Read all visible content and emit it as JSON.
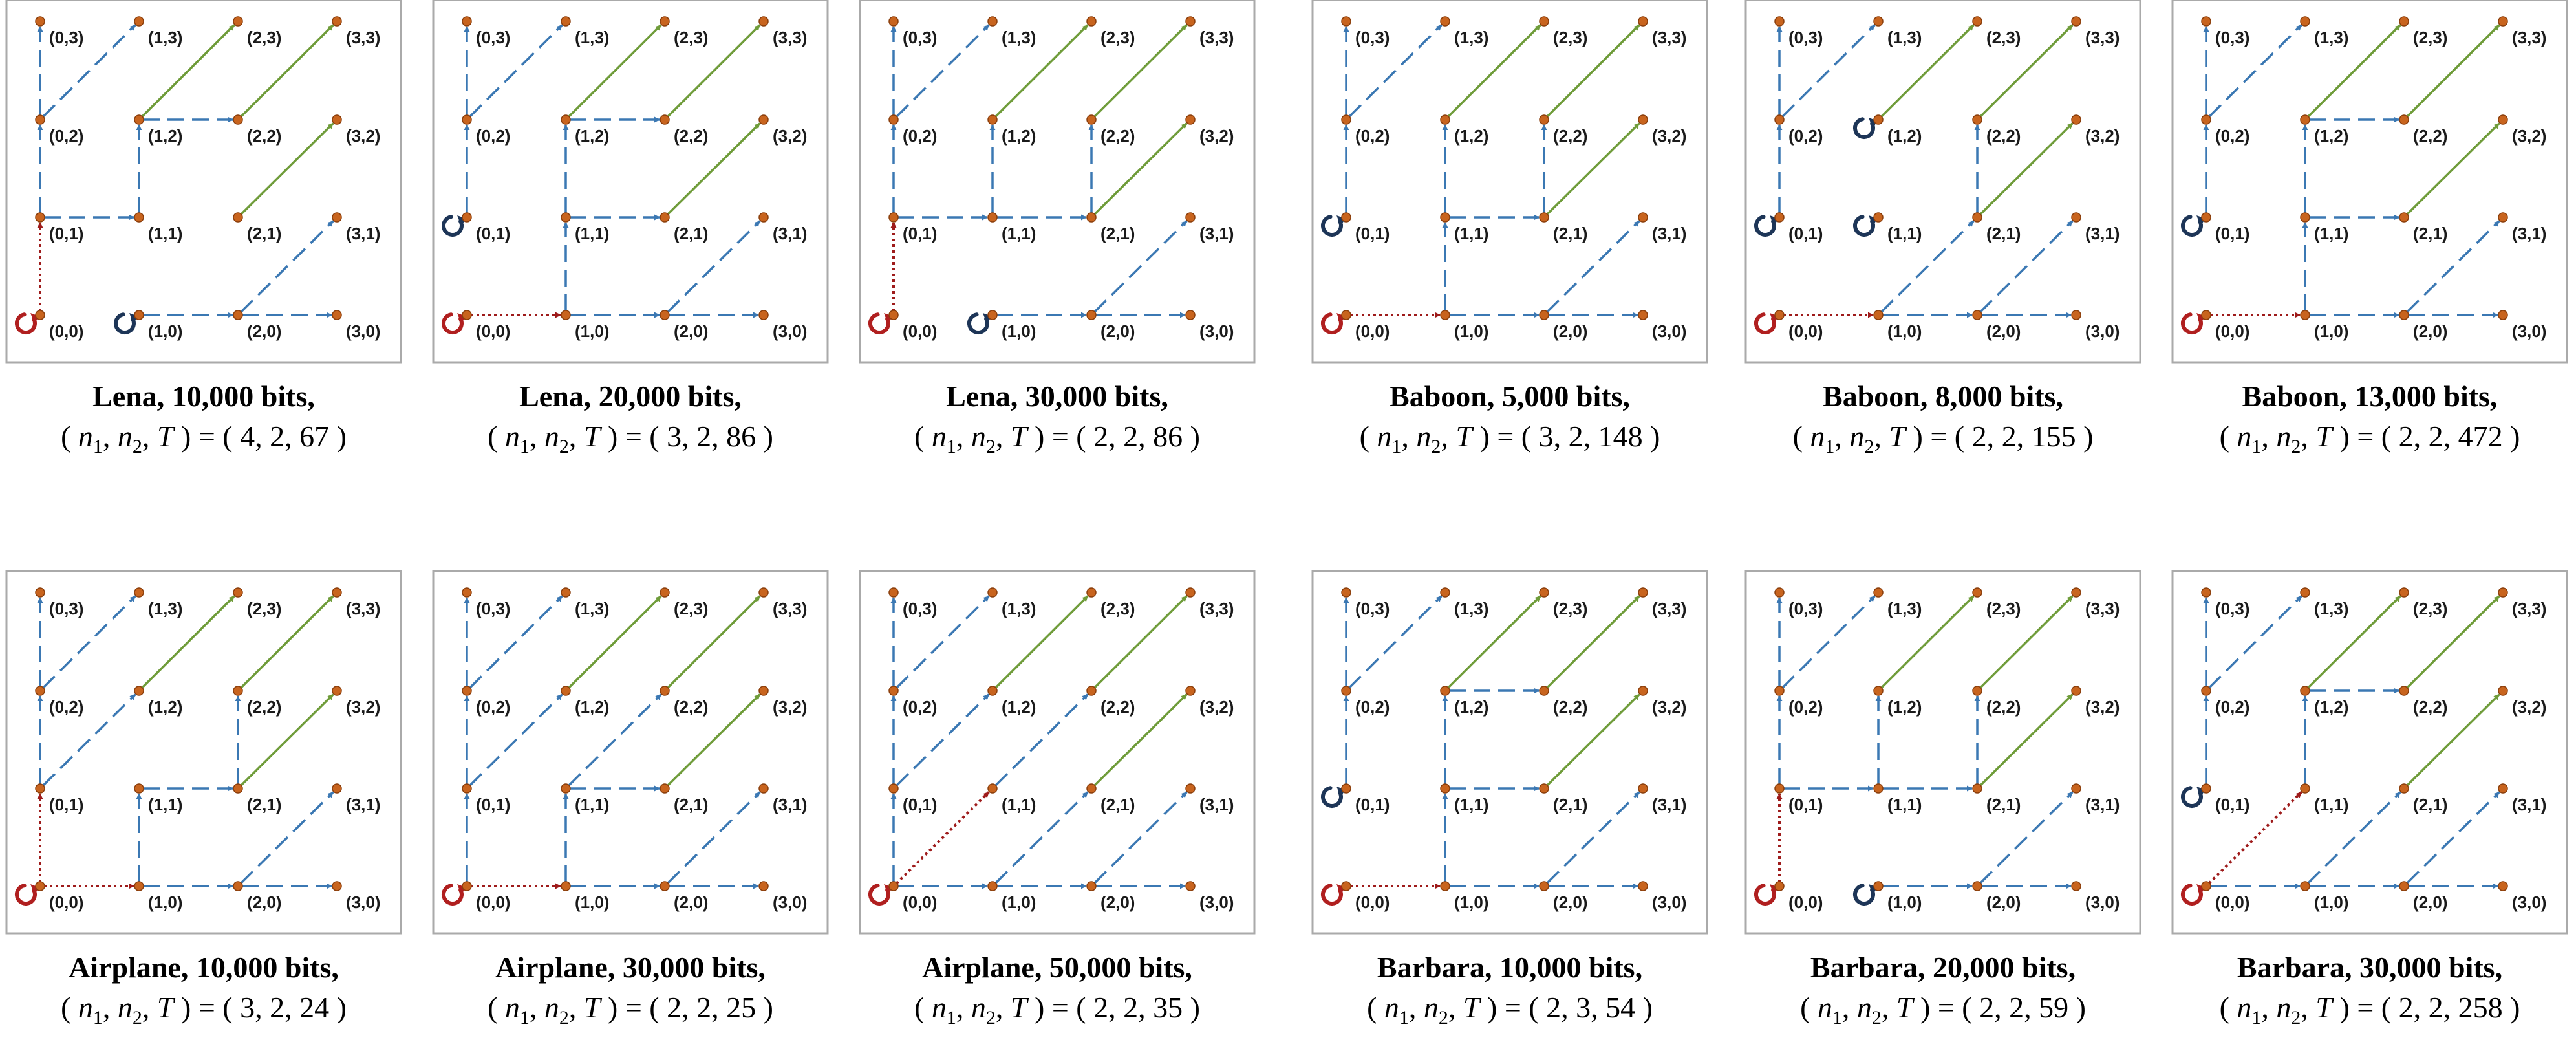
{
  "colors": {
    "node": "#c8641e",
    "dashed_edge": "#3b78b3",
    "solid_edge": "#6f9c3a",
    "dotted_edge": "#9e1b1b",
    "self_loop_red": "#b01f1f",
    "self_loop_blue": "#1d3557",
    "panel_border": "#aaaaaa"
  },
  "panels": [
    {
      "name": "Lena",
      "bits": "10,000 bits,",
      "params": "( 4, 2, 67 )",
      "loops": [
        {
          "node": "0,0",
          "color": "red"
        },
        {
          "node": "1,0",
          "color": "blue"
        }
      ],
      "edges": [
        [
          "0,0",
          "0,1",
          "dot"
        ],
        [
          "0,1",
          "0,2",
          "dash"
        ],
        [
          "0,2",
          "0,3",
          "dash"
        ],
        [
          "0,1",
          "1,1",
          "dash"
        ],
        [
          "0,2",
          "1,3",
          "dash"
        ],
        [
          "1,1",
          "1,2",
          "dash"
        ],
        [
          "1,2",
          "2,2",
          "dash"
        ],
        [
          "1,2",
          "2,3",
          "solid"
        ],
        [
          "2,2",
          "3,3",
          "solid"
        ],
        [
          "2,1",
          "3,2",
          "solid"
        ],
        [
          "1,0",
          "2,0",
          "dash"
        ],
        [
          "2,0",
          "3,0",
          "dash"
        ],
        [
          "2,0",
          "3,1",
          "dash"
        ]
      ]
    },
    {
      "name": "Lena",
      "bits": "20,000 bits,",
      "params": "( 3, 2, 86 )",
      "loops": [
        {
          "node": "0,0",
          "color": "red"
        },
        {
          "node": "0,1",
          "color": "blue"
        }
      ],
      "edges": [
        [
          "0,0",
          "1,0",
          "dot"
        ],
        [
          "1,0",
          "2,0",
          "dash"
        ],
        [
          "2,0",
          "3,0",
          "dash"
        ],
        [
          "2,0",
          "3,1",
          "dash"
        ],
        [
          "1,0",
          "1,1",
          "dash"
        ],
        [
          "1,1",
          "2,1",
          "dash"
        ],
        [
          "1,1",
          "1,2",
          "dash"
        ],
        [
          "1,2",
          "2,2",
          "dash"
        ],
        [
          "1,2",
          "2,3",
          "solid"
        ],
        [
          "2,2",
          "3,3",
          "solid"
        ],
        [
          "2,1",
          "3,2",
          "solid"
        ],
        [
          "0,1",
          "0,2",
          "dash"
        ],
        [
          "0,2",
          "0,3",
          "dash"
        ],
        [
          "0,2",
          "1,3",
          "dash"
        ]
      ]
    },
    {
      "name": "Lena",
      "bits": "30,000 bits,",
      "params": "( 2, 2, 86 )",
      "loops": [
        {
          "node": "0,0",
          "color": "red"
        },
        {
          "node": "1,0",
          "color": "blue"
        }
      ],
      "edges": [
        [
          "0,0",
          "0,1",
          "dot"
        ],
        [
          "0,1",
          "1,1",
          "dash"
        ],
        [
          "1,1",
          "2,1",
          "dash"
        ],
        [
          "0,1",
          "0,2",
          "dash"
        ],
        [
          "0,2",
          "0,3",
          "dash"
        ],
        [
          "0,2",
          "1,3",
          "dash"
        ],
        [
          "1,1",
          "1,2",
          "dash"
        ],
        [
          "1,2",
          "2,3",
          "solid"
        ],
        [
          "2,1",
          "2,2",
          "dash"
        ],
        [
          "2,2",
          "3,3",
          "solid"
        ],
        [
          "2,1",
          "3,2",
          "solid"
        ],
        [
          "1,0",
          "2,0",
          "dash"
        ],
        [
          "2,0",
          "3,0",
          "dash"
        ],
        [
          "2,0",
          "3,1",
          "dash"
        ]
      ]
    },
    {
      "name": "Baboon",
      "bits": "5,000 bits,",
      "params": "( 3, 2, 148 )",
      "loops": [
        {
          "node": "0,0",
          "color": "red"
        },
        {
          "node": "0,1",
          "color": "blue"
        }
      ],
      "edges": [
        [
          "0,0",
          "1,0",
          "dot"
        ],
        [
          "1,0",
          "2,0",
          "dash"
        ],
        [
          "2,0",
          "3,0",
          "dash"
        ],
        [
          "2,0",
          "3,1",
          "dash"
        ],
        [
          "1,0",
          "1,1",
          "dash"
        ],
        [
          "1,1",
          "2,1",
          "dash"
        ],
        [
          "1,1",
          "1,2",
          "dash"
        ],
        [
          "1,2",
          "2,3",
          "solid"
        ],
        [
          "2,1",
          "2,2",
          "dash"
        ],
        [
          "2,2",
          "3,3",
          "solid"
        ],
        [
          "2,1",
          "3,2",
          "solid"
        ],
        [
          "0,1",
          "0,2",
          "dash"
        ],
        [
          "0,2",
          "0,3",
          "dash"
        ],
        [
          "0,2",
          "1,3",
          "dash"
        ]
      ]
    },
    {
      "name": "Baboon",
      "bits": "8,000 bits,",
      "params": "( 2, 2, 155 )",
      "loops": [
        {
          "node": "0,0",
          "color": "red"
        },
        {
          "node": "0,1",
          "color": "blue"
        },
        {
          "node": "1,1",
          "color": "blue"
        },
        {
          "node": "1,2",
          "color": "blue"
        }
      ],
      "edges": [
        [
          "0,0",
          "1,0",
          "dot"
        ],
        [
          "1,0",
          "2,0",
          "dash"
        ],
        [
          "2,0",
          "3,0",
          "dash"
        ],
        [
          "2,0",
          "3,1",
          "dash"
        ],
        [
          "1,0",
          "2,1",
          "dash"
        ],
        [
          "2,1",
          "2,2",
          "dash"
        ],
        [
          "2,2",
          "3,3",
          "solid"
        ],
        [
          "2,1",
          "3,2",
          "solid"
        ],
        [
          "1,2",
          "2,3",
          "solid"
        ],
        [
          "0,1",
          "0,2",
          "dash"
        ],
        [
          "0,2",
          "0,3",
          "dash"
        ],
        [
          "0,2",
          "1,3",
          "dash"
        ]
      ]
    },
    {
      "name": "Baboon",
      "bits": "13,000 bits,",
      "params": "( 2, 2, 472 )",
      "loops": [
        {
          "node": "0,0",
          "color": "red"
        },
        {
          "node": "0,1",
          "color": "blue"
        }
      ],
      "edges": [
        [
          "0,0",
          "1,0",
          "dot"
        ],
        [
          "1,0",
          "2,0",
          "dash"
        ],
        [
          "2,0",
          "3,0",
          "dash"
        ],
        [
          "2,0",
          "3,1",
          "dash"
        ],
        [
          "1,0",
          "1,1",
          "dash"
        ],
        [
          "1,1",
          "2,1",
          "dash"
        ],
        [
          "1,1",
          "1,2",
          "dash"
        ],
        [
          "1,2",
          "2,2",
          "dash"
        ],
        [
          "1,2",
          "2,3",
          "solid"
        ],
        [
          "2,2",
          "3,3",
          "solid"
        ],
        [
          "2,1",
          "3,2",
          "solid"
        ],
        [
          "0,1",
          "0,2",
          "dash"
        ],
        [
          "0,2",
          "0,3",
          "dash"
        ],
        [
          "0,2",
          "1,3",
          "dash"
        ]
      ]
    },
    {
      "name": "Airplane",
      "bits": "10,000 bits,",
      "params": "( 3, 2, 24 )",
      "loops": [
        {
          "node": "0,0",
          "color": "red"
        }
      ],
      "edges": [
        [
          "0,0",
          "0,1",
          "dot"
        ],
        [
          "0,0",
          "1,0",
          "dot"
        ],
        [
          "1,0",
          "1,1",
          "dash"
        ],
        [
          "1,1",
          "2,1",
          "dash"
        ],
        [
          "0,1",
          "0,2",
          "dash"
        ],
        [
          "0,1",
          "1,2",
          "dash"
        ],
        [
          "0,2",
          "0,3",
          "dash"
        ],
        [
          "0,2",
          "1,3",
          "dash"
        ],
        [
          "1,2",
          "2,3",
          "solid"
        ],
        [
          "2,1",
          "2,2",
          "dash"
        ],
        [
          "2,2",
          "3,3",
          "solid"
        ],
        [
          "2,1",
          "3,2",
          "solid"
        ],
        [
          "1,0",
          "2,0",
          "dash"
        ],
        [
          "2,0",
          "3,0",
          "dash"
        ],
        [
          "2,0",
          "3,1",
          "dash"
        ]
      ]
    },
    {
      "name": "Airplane",
      "bits": "30,000 bits,",
      "params": "( 2, 2, 25 )",
      "loops": [
        {
          "node": "0,0",
          "color": "red"
        }
      ],
      "edges": [
        [
          "0,0",
          "1,0",
          "dot"
        ],
        [
          "1,0",
          "2,0",
          "dash"
        ],
        [
          "2,0",
          "3,0",
          "dash"
        ],
        [
          "2,0",
          "3,1",
          "dash"
        ],
        [
          "1,0",
          "1,1",
          "dash"
        ],
        [
          "1,1",
          "2,1",
          "dash"
        ],
        [
          "1,1",
          "2,2",
          "dash"
        ],
        [
          "0,0",
          "0,1",
          "dash"
        ],
        [
          "0,1",
          "0,2",
          "dash"
        ],
        [
          "0,1",
          "1,2",
          "dash"
        ],
        [
          "0,2",
          "0,3",
          "dash"
        ],
        [
          "0,2",
          "1,3",
          "dash"
        ],
        [
          "1,2",
          "2,3",
          "solid"
        ],
        [
          "2,2",
          "3,3",
          "solid"
        ],
        [
          "2,1",
          "3,2",
          "solid"
        ]
      ]
    },
    {
      "name": "Airplane",
      "bits": "50,000 bits,",
      "params": "( 2, 2, 35 )",
      "loops": [
        {
          "node": "0,0",
          "color": "red"
        }
      ],
      "edges": [
        [
          "0,0",
          "1,1",
          "dot"
        ],
        [
          "0,0",
          "0,1",
          "dash"
        ],
        [
          "0,0",
          "1,0",
          "dash"
        ],
        [
          "1,0",
          "2,0",
          "dash"
        ],
        [
          "2,0",
          "3,0",
          "dash"
        ],
        [
          "1,0",
          "2,1",
          "dash"
        ],
        [
          "2,0",
          "3,1",
          "dash"
        ],
        [
          "0,1",
          "0,2",
          "dash"
        ],
        [
          "0,1",
          "1,2",
          "dash"
        ],
        [
          "0,2",
          "0,3",
          "dash"
        ],
        [
          "0,2",
          "1,3",
          "dash"
        ],
        [
          "1,1",
          "2,2",
          "dash"
        ],
        [
          "1,2",
          "2,3",
          "solid"
        ],
        [
          "2,2",
          "3,3",
          "solid"
        ],
        [
          "2,1",
          "3,2",
          "solid"
        ]
      ]
    },
    {
      "name": "Barbara",
      "bits": "10,000 bits,",
      "params": "( 2, 3, 54 )",
      "loops": [
        {
          "node": "0,0",
          "color": "red"
        },
        {
          "node": "0,1",
          "color": "blue"
        }
      ],
      "edges": [
        [
          "0,0",
          "1,0",
          "dot"
        ],
        [
          "1,0",
          "2,0",
          "dash"
        ],
        [
          "2,0",
          "3,0",
          "dash"
        ],
        [
          "2,0",
          "3,1",
          "dash"
        ],
        [
          "1,0",
          "1,1",
          "dash"
        ],
        [
          "1,1",
          "2,1",
          "dash"
        ],
        [
          "1,1",
          "1,2",
          "dash"
        ],
        [
          "1,2",
          "2,2",
          "dash"
        ],
        [
          "1,2",
          "2,3",
          "solid"
        ],
        [
          "2,2",
          "3,3",
          "solid"
        ],
        [
          "2,1",
          "3,2",
          "solid"
        ],
        [
          "0,1",
          "0,2",
          "dash"
        ],
        [
          "0,2",
          "0,3",
          "dash"
        ],
        [
          "0,2",
          "1,3",
          "dash"
        ]
      ]
    },
    {
      "name": "Barbara",
      "bits": "20,000 bits,",
      "params": "( 2, 2, 59 )",
      "loops": [
        {
          "node": "0,0",
          "color": "red"
        },
        {
          "node": "1,0",
          "color": "blue"
        }
      ],
      "edges": [
        [
          "0,0",
          "0,1",
          "dot"
        ],
        [
          "0,1",
          "1,1",
          "dash"
        ],
        [
          "1,1",
          "2,1",
          "dash"
        ],
        [
          "1,1",
          "1,2",
          "dash"
        ],
        [
          "1,2",
          "2,3",
          "solid"
        ],
        [
          "2,1",
          "2,2",
          "dash"
        ],
        [
          "2,2",
          "3,3",
          "solid"
        ],
        [
          "2,1",
          "3,2",
          "solid"
        ],
        [
          "0,1",
          "0,2",
          "dash"
        ],
        [
          "0,2",
          "0,3",
          "dash"
        ],
        [
          "0,2",
          "1,3",
          "dash"
        ],
        [
          "1,0",
          "2,0",
          "dash"
        ],
        [
          "2,0",
          "3,0",
          "dash"
        ],
        [
          "2,0",
          "3,1",
          "dash"
        ]
      ]
    },
    {
      "name": "Barbara",
      "bits": "30,000 bits,",
      "params": "( 2, 2, 258 )",
      "loops": [
        {
          "node": "0,0",
          "color": "red"
        },
        {
          "node": "0,1",
          "color": "blue"
        }
      ],
      "edges": [
        [
          "0,0",
          "1,1",
          "dot"
        ],
        [
          "0,0",
          "1,0",
          "dash"
        ],
        [
          "1,0",
          "2,0",
          "dash"
        ],
        [
          "2,0",
          "3,0",
          "dash"
        ],
        [
          "2,0",
          "3,1",
          "dash"
        ],
        [
          "1,0",
          "2,1",
          "dash"
        ],
        [
          "1,1",
          "1,2",
          "dash"
        ],
        [
          "1,2",
          "2,2",
          "dash"
        ],
        [
          "1,2",
          "2,3",
          "solid"
        ],
        [
          "2,2",
          "3,3",
          "solid"
        ],
        [
          "2,1",
          "3,2",
          "solid"
        ],
        [
          "0,1",
          "0,2",
          "dash"
        ],
        [
          "0,2",
          "0,3",
          "dash"
        ],
        [
          "0,2",
          "1,3",
          "dash"
        ]
      ]
    }
  ]
}
